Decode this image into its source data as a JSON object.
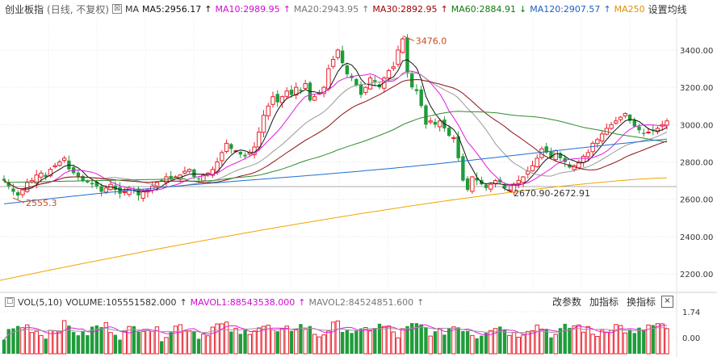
{
  "header": {
    "title": "创业板指",
    "subtitle": "(日线, 不复权)",
    "ma_label": "MA",
    "ma5": "MA5:2956.17",
    "ma10": "MA10:2989.95",
    "ma20": "MA20:2943.95",
    "ma30": "MA30:2892.95",
    "ma60": "MA60:2884.91",
    "ma120": "MA120:2907.57",
    "ma250": "MA250",
    "settings": "设置均线",
    "arrow_up": "↑",
    "arrow_down": "↓"
  },
  "colors": {
    "up": "#e8212e",
    "down": "#1f9c3a",
    "ma5": "#111111",
    "ma10": "#e11be1",
    "ma20": "#999999",
    "ma30": "#8b1010",
    "ma60": "#2e8b2e",
    "ma120": "#1f6fd1",
    "ma250": "#f0a500",
    "ma10_label": "#d10ad1",
    "ma30_label": "#a00000",
    "ma60_label": "#0f7a0f",
    "ma120_label": "#1f5fbf",
    "ma250_label": "#e09000"
  },
  "annotations": {
    "high": "3476.0",
    "low": "2555.3",
    "range": "2670.90-2672.91"
  },
  "volume_header": {
    "vol": "VOL(5,10)",
    "volume": "VOLUME:105551582.000",
    "mavol1": "MAVOL1:88543538.000",
    "mavol2": "MAVOL2:84524851.600",
    "arrow_up": "↑"
  },
  "buttons": {
    "modify_params": "改参数",
    "add_indicator": "加指标",
    "switch_indicator": "换指标",
    "close": "×"
  },
  "chart_data": [
    {
      "type": "candlestick",
      "title": "创业板指",
      "y_ticks": [
        "3400.00",
        "3200.00",
        "3000.00",
        "2800.00",
        "2600.00",
        "2400.00",
        "2200.00"
      ],
      "ylim": [
        2150,
        3510
      ],
      "grid": true,
      "series_note": "close values per trading day (approx.)",
      "close": [
        2700,
        2670,
        2640,
        2620,
        2650,
        2690,
        2700,
        2730,
        2740,
        2720,
        2760,
        2780,
        2800,
        2820,
        2760,
        2740,
        2720,
        2700,
        2690,
        2680,
        2670,
        2640,
        2660,
        2680,
        2650,
        2630,
        2640,
        2660,
        2650,
        2620,
        2640,
        2650,
        2670,
        2690,
        2700,
        2720,
        2710,
        2720,
        2730,
        2750,
        2760,
        2720,
        2710,
        2730,
        2740,
        2760,
        2800,
        2850,
        2900,
        2870,
        2860,
        2840,
        2830,
        2850,
        2880,
        2960,
        3050,
        3100,
        3150,
        3120,
        3150,
        3180,
        3160,
        3200,
        3180,
        3220,
        3130,
        3150,
        3170,
        3200,
        3300,
        3350,
        3400,
        3330,
        3270,
        3250,
        3210,
        3160,
        3200,
        3250,
        3230,
        3200,
        3250,
        3290,
        3310,
        3400,
        3460,
        3280,
        3200,
        3180,
        3100,
        3000,
        3020,
        3000,
        3020,
        2980,
        2940,
        2930,
        2820,
        2700,
        2650,
        2720,
        2700,
        2680,
        2660,
        2680,
        2700,
        2690,
        2660,
        2650,
        2680,
        2700,
        2720,
        2750,
        2780,
        2820,
        2870,
        2850,
        2820,
        2860,
        2820,
        2800,
        2770,
        2780,
        2800,
        2830,
        2850,
        2900,
        2920,
        2950,
        2980,
        3000,
        3020,
        3040,
        3060,
        3020,
        2990,
        2970,
        2950,
        2960,
        2970,
        2980,
        3000,
        3020
      ],
      "ma250": {
        "start": 2165,
        "end": 2715
      }
    },
    {
      "type": "bar",
      "title": "VOL(5,10)",
      "y_ticks": [
        "1.74",
        "0.00"
      ],
      "ylim": [
        0,
        1.9
      ],
      "unit_note": "×10^8 approx."
    }
  ]
}
